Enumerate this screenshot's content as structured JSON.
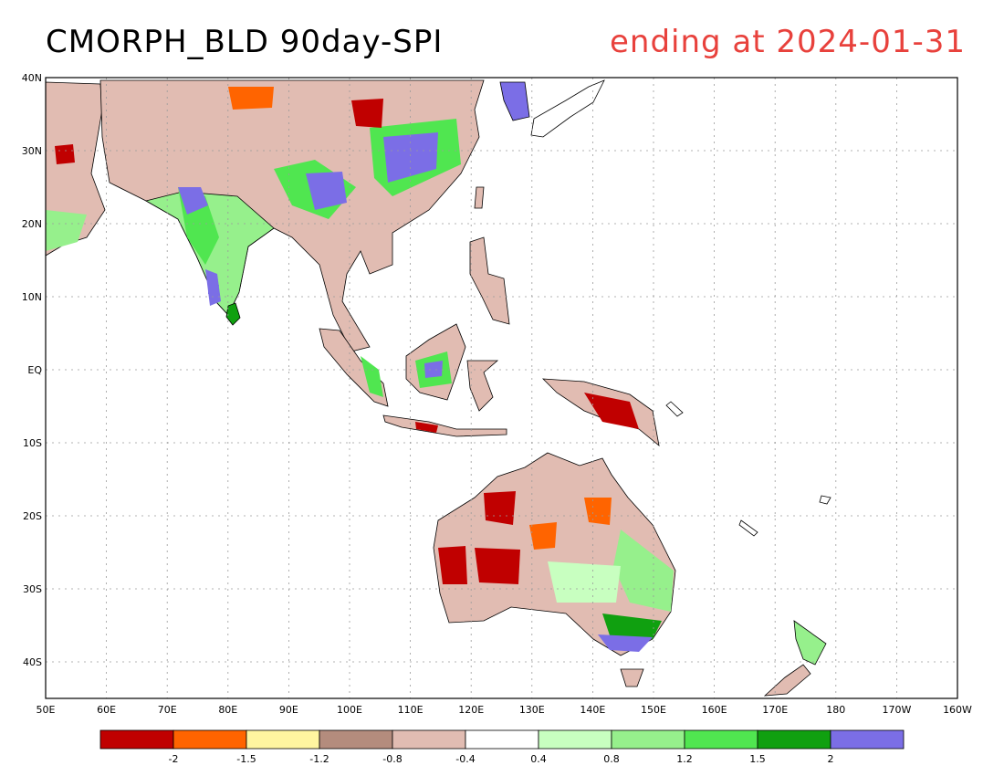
{
  "title": {
    "left": "CMORPH_BLD 90day-SPI",
    "right": "ending at 2024-01-31",
    "right_color": "#e8413c"
  },
  "map": {
    "lat_labels": [
      "40N",
      "30N",
      "20N",
      "10N",
      "EQ",
      "10S",
      "20S",
      "30S",
      "40S"
    ],
    "lon_labels": [
      "50E",
      "60E",
      "70E",
      "80E",
      "90E",
      "100E",
      "110E",
      "120E",
      "130E",
      "140E",
      "150E",
      "160E",
      "170E",
      "180",
      "170W",
      "160W"
    ],
    "grid": true
  },
  "legend": {
    "colors": [
      "#c00000",
      "#ff6400",
      "#fff5a0",
      "#b48c7d",
      "#e1bcb2",
      "#ffffff",
      "#c8ffc0",
      "#96f08c",
      "#50e650",
      "#10a010",
      "#7b6ee6"
    ],
    "labels": [
      "-2",
      "-1.5",
      "-1.2",
      "-0.8",
      "-0.4",
      "0.4",
      "0.8",
      "1.2",
      "1.5",
      "2"
    ]
  }
}
